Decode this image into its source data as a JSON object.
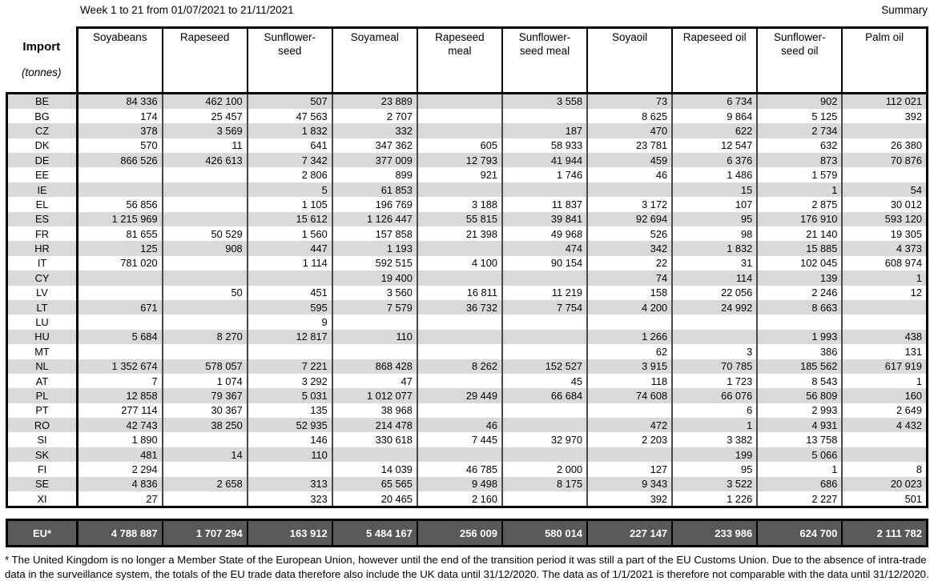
{
  "header": {
    "title": "Week 1 to 21 from 01/07/2021 to 21/11/2021",
    "summary_label": "Summary"
  },
  "table": {
    "corner": {
      "line1": "Import",
      "line2": "(tonnes)"
    },
    "columns": [
      "Soyabeans",
      "Rapeseed",
      "Sunflower-\nseed",
      "Soyameal",
      "Rapeseed\nmeal",
      "Sunflower-\nseed meal",
      "Soyaoil",
      "Rapeseed oil",
      "Sunflower-\nseed oil",
      "Palm oil"
    ],
    "rows": [
      {
        "code": "BE",
        "values": [
          "84 336",
          "462 100",
          "507",
          "23 889",
          "",
          "3 558",
          "73",
          "6 734",
          "902",
          "112 021"
        ]
      },
      {
        "code": "BG",
        "values": [
          "174",
          "25 457",
          "47 563",
          "2 707",
          "",
          "",
          "8 625",
          "9 864",
          "5 125",
          "392"
        ]
      },
      {
        "code": "CZ",
        "values": [
          "378",
          "3 569",
          "1 832",
          "332",
          "",
          "187",
          "470",
          "622",
          "2 734",
          ""
        ]
      },
      {
        "code": "DK",
        "values": [
          "570",
          "11",
          "641",
          "347 362",
          "605",
          "58 933",
          "23 781",
          "12 547",
          "632",
          "26 380"
        ]
      },
      {
        "code": "DE",
        "values": [
          "866 526",
          "426 613",
          "7 342",
          "377 009",
          "12 793",
          "41 944",
          "459",
          "6 376",
          "873",
          "70 876"
        ]
      },
      {
        "code": "EE",
        "values": [
          "",
          "",
          "2 806",
          "899",
          "921",
          "1 746",
          "46",
          "1 486",
          "1 579",
          ""
        ]
      },
      {
        "code": "IE",
        "values": [
          "",
          "",
          "5",
          "61 853",
          "",
          "",
          "",
          "15",
          "1",
          "54"
        ]
      },
      {
        "code": "EL",
        "values": [
          "56 856",
          "",
          "1 105",
          "196 769",
          "3 188",
          "11 837",
          "3 172",
          "107",
          "2 875",
          "30 012"
        ]
      },
      {
        "code": "ES",
        "values": [
          "1 215 969",
          "",
          "15 612",
          "1 126 447",
          "55 815",
          "39 841",
          "92 694",
          "95",
          "176 910",
          "593 120"
        ]
      },
      {
        "code": "FR",
        "values": [
          "81 655",
          "50 529",
          "1 560",
          "157 858",
          "21 398",
          "49 968",
          "526",
          "98",
          "21 140",
          "19 305"
        ]
      },
      {
        "code": "HR",
        "values": [
          "125",
          "908",
          "447",
          "1 193",
          "",
          "474",
          "342",
          "1 832",
          "15 885",
          "4 373"
        ]
      },
      {
        "code": "IT",
        "values": [
          "781 020",
          "",
          "1 114",
          "592 515",
          "4 100",
          "90 154",
          "22",
          "31",
          "102 045",
          "608 974"
        ]
      },
      {
        "code": "CY",
        "values": [
          "",
          "",
          "",
          "19 400",
          "",
          "",
          "74",
          "114",
          "139",
          "1"
        ]
      },
      {
        "code": "LV",
        "values": [
          "",
          "50",
          "451",
          "3 560",
          "16 811",
          "11 219",
          "158",
          "22 056",
          "2 246",
          "12"
        ]
      },
      {
        "code": "LT",
        "values": [
          "671",
          "",
          "595",
          "7 579",
          "36 732",
          "7 754",
          "4 200",
          "24 992",
          "8 663",
          ""
        ]
      },
      {
        "code": "LU",
        "values": [
          "",
          "",
          "9",
          "",
          "",
          "",
          "",
          "",
          "",
          ""
        ]
      },
      {
        "code": "HU",
        "values": [
          "5 684",
          "8 270",
          "12 817",
          "110",
          "",
          "",
          "1 266",
          "",
          "1 993",
          "438"
        ]
      },
      {
        "code": "MT",
        "values": [
          "",
          "",
          "",
          "",
          "",
          "",
          "62",
          "3",
          "386",
          "131"
        ]
      },
      {
        "code": "NL",
        "values": [
          "1 352 674",
          "578 057",
          "7 221",
          "868 428",
          "8 262",
          "152 527",
          "3 915",
          "70 785",
          "185 562",
          "617 919"
        ]
      },
      {
        "code": "AT",
        "values": [
          "7",
          "1 074",
          "3 292",
          "47",
          "",
          "45",
          "118",
          "1 723",
          "8 543",
          "1"
        ]
      },
      {
        "code": "PL",
        "values": [
          "12 858",
          "79 367",
          "5 031",
          "1 012 077",
          "29 449",
          "66 684",
          "74 608",
          "66 076",
          "56 809",
          "160"
        ]
      },
      {
        "code": "PT",
        "values": [
          "277 114",
          "30 367",
          "135",
          "38 968",
          "",
          "",
          "",
          "6",
          "2 993",
          "2 649"
        ]
      },
      {
        "code": "RO",
        "values": [
          "42 743",
          "38 250",
          "52 935",
          "214 478",
          "46",
          "",
          "472",
          "1",
          "4 931",
          "4 432"
        ]
      },
      {
        "code": "SI",
        "values": [
          "1 890",
          "",
          "146",
          "330 618",
          "7 445",
          "32 970",
          "2 203",
          "3 382",
          "13 758",
          ""
        ]
      },
      {
        "code": "SK",
        "values": [
          "481",
          "14",
          "110",
          "",
          "",
          "",
          "",
          "199",
          "5 066",
          ""
        ]
      },
      {
        "code": "FI",
        "values": [
          "2 294",
          "",
          "",
          "14 039",
          "46 785",
          "2 000",
          "127",
          "95",
          "1",
          "8"
        ]
      },
      {
        "code": "SE",
        "values": [
          "4 836",
          "2 658",
          "313",
          "65 565",
          "9 498",
          "8 175",
          "9 343",
          "3 522",
          "686",
          "20 023"
        ]
      },
      {
        "code": "XI",
        "values": [
          "27",
          "",
          "323",
          "20 465",
          "2 160",
          "",
          "392",
          "1 226",
          "2 227",
          "501"
        ]
      }
    ],
    "total": {
      "code": "EU*",
      "values": [
        "4 788 887",
        "1 707 294",
        "163 912",
        "5 484 167",
        "256 009",
        "580 014",
        "227 147",
        "233 986",
        "624 700",
        "2 111 782"
      ]
    }
  },
  "footnote": "* The United Kingdom is no longer a Member State of the European Union, however until the end of the transition period it was still a part of the EU Customs Union. Due to the absence of intra-trade data in the surveillance system, the totals of the EU trade data  therefore also include the UK data until 31/12/2020. The data as of 1/1/2021 is therefore not comparable with the data until 31/12/2020.",
  "colors": {
    "row_stripe": "#d9d9d9",
    "total_bg": "#595959",
    "total_text": "#ffffff",
    "border": "#000000"
  }
}
